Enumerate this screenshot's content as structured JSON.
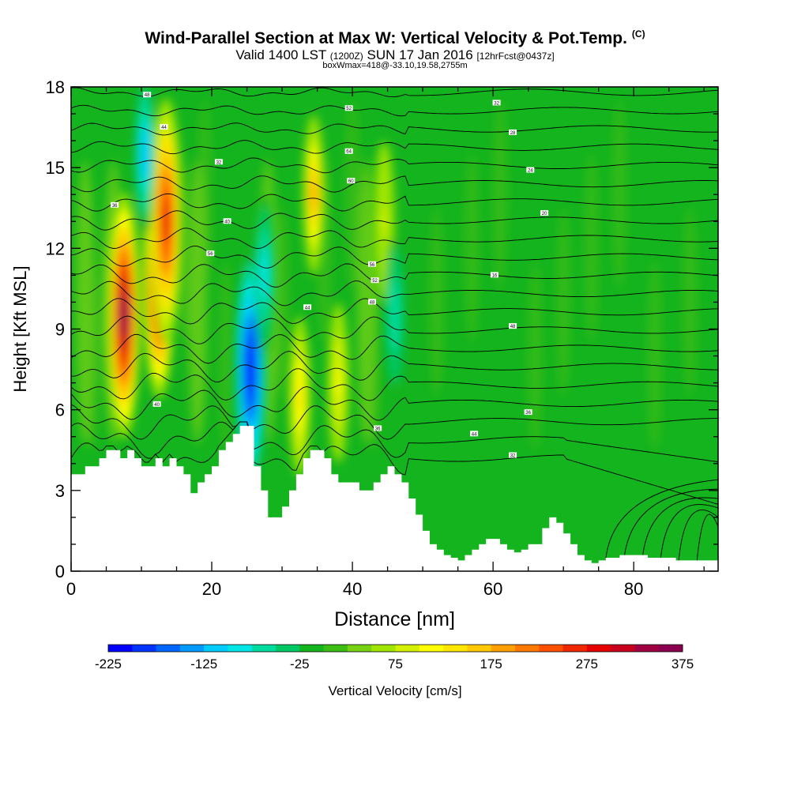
{
  "title": {
    "main": "Wind-Parallel Section at Max W: Vertical Velocity & Pot.Temp.",
    "copyright": "(C)",
    "valid_prefix": "Valid 1400 LST",
    "valid_utc": "(1200Z)",
    "valid_date": "SUN 17 Jan 2016",
    "forecast": "[12hrFcst@0437z]",
    "box_info": "boxWmax=418@-33.10,19.58,2755m"
  },
  "chart_data": {
    "type": "heatmap",
    "title": "Wind-Parallel Section at Max W: Vertical Velocity & Pot.Temp.",
    "xlabel": "Distance [nm]",
    "ylabel": "Height [Kft MSL]",
    "xlim": [
      0,
      92
    ],
    "ylim": [
      0,
      18
    ],
    "x_ticks": [
      0,
      20,
      40,
      60,
      80
    ],
    "y_ticks": [
      0,
      3,
      6,
      9,
      12,
      15,
      18
    ],
    "colorbar": {
      "label": "Vertical Velocity [cm/s]",
      "min": -225,
      "max": 375,
      "step": 25,
      "tick_values": [
        -225,
        -125,
        -25,
        75,
        175,
        275,
        375
      ],
      "colors": [
        "#0000ff",
        "#0033ff",
        "#0066ff",
        "#0099ff",
        "#00ccff",
        "#00e5e5",
        "#00dca0",
        "#00c864",
        "#14b41e",
        "#3cbe14",
        "#78d214",
        "#a0e600",
        "#d2f000",
        "#ffff00",
        "#ffe600",
        "#ffc800",
        "#ffa000",
        "#ff7800",
        "#ff5000",
        "#f02800",
        "#e60000",
        "#c8001e",
        "#a00041",
        "#8c0050"
      ]
    },
    "terrain_profile": {
      "x": [
        0,
        2,
        4,
        5,
        6,
        7,
        8,
        9,
        10,
        11,
        12,
        13,
        14,
        15,
        16,
        17,
        18,
        19,
        20,
        21,
        22,
        23,
        24,
        25,
        26,
        27,
        28,
        29,
        30,
        31,
        32,
        33,
        34,
        35,
        36,
        37,
        38,
        39,
        40,
        41,
        42,
        43,
        44,
        45,
        46,
        47,
        48,
        49,
        50,
        51,
        52,
        53,
        54,
        55,
        56,
        57,
        58,
        59,
        60,
        61,
        62,
        63,
        64,
        65,
        66,
        67,
        68,
        69,
        70,
        71,
        72,
        73,
        74,
        75,
        76,
        77,
        78,
        80,
        82,
        84,
        86,
        88,
        90,
        92
      ],
      "y": [
        3.6,
        3.9,
        4.2,
        4.5,
        4.5,
        4.2,
        4.5,
        4.2,
        3.9,
        3.9,
        4.2,
        3.9,
        4.2,
        3.9,
        3.6,
        2.9,
        3.3,
        3.6,
        3.9,
        4.5,
        4.8,
        5.1,
        5.4,
        5.4,
        3.9,
        3.0,
        2.0,
        2.0,
        2.4,
        3.0,
        3.6,
        4.2,
        4.5,
        4.5,
        4.2,
        3.6,
        3.3,
        3.3,
        3.3,
        3.0,
        3.0,
        3.3,
        3.6,
        3.9,
        3.6,
        3.3,
        2.7,
        2.1,
        1.5,
        1.0,
        0.8,
        0.6,
        0.5,
        0.4,
        0.6,
        0.8,
        1.0,
        1.2,
        1.2,
        1.0,
        0.8,
        0.7,
        0.8,
        1.0,
        1.0,
        1.6,
        2.0,
        1.8,
        1.4,
        1.0,
        0.6,
        0.4,
        0.3,
        0.4,
        0.5,
        0.5,
        0.6,
        0.6,
        0.5,
        0.5,
        0.4,
        0.4,
        0.4,
        0.4
      ]
    },
    "updrafts": [
      {
        "x": 7.5,
        "y": 9.5,
        "value": 375
      },
      {
        "x": 12.5,
        "y": 11.0,
        "value": 350
      },
      {
        "x": 13.5,
        "y": 13.0,
        "value": 275
      },
      {
        "x": 34.5,
        "y": 14.0,
        "value": 175
      },
      {
        "x": 32.5,
        "y": 6.5,
        "value": 125
      },
      {
        "x": 38.0,
        "y": 7.0,
        "value": 100
      },
      {
        "x": 44.5,
        "y": 13.0,
        "value": 75
      }
    ],
    "downdrafts": [
      {
        "x": 25.5,
        "y": 7.5,
        "value": -225
      },
      {
        "x": 10.5,
        "y": 15.5,
        "value": -125
      },
      {
        "x": 27.5,
        "y": 11.0,
        "value": -100
      },
      {
        "x": 46.0,
        "y": 9.5,
        "value": -75
      }
    ],
    "isentrope_labels": [
      "48",
      "36",
      "44",
      "32",
      "40",
      "56",
      "52",
      "64",
      "60",
      "56",
      "52",
      "48",
      "44",
      "40",
      "36",
      "32",
      "28",
      "24",
      "20",
      "16"
    ]
  }
}
